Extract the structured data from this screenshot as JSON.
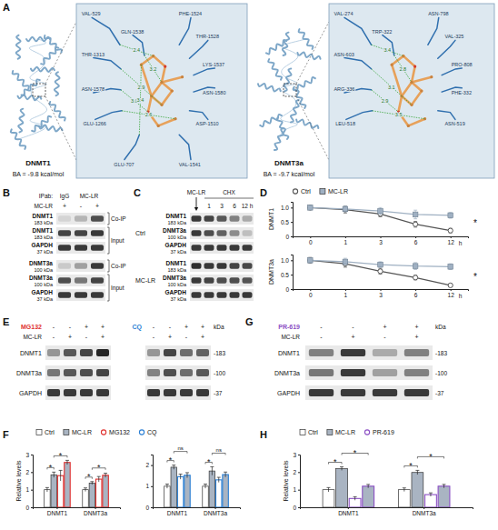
{
  "panel_labels": [
    "A",
    "B",
    "C",
    "D",
    "E",
    "F",
    "G",
    "H"
  ],
  "panels": {
    "A": {
      "structures": [
        {
          "name": "DNMT1",
          "affinity": "BA = -9.8 kcal/mol",
          "residues": [
            "VAL-529",
            "PHE-1524",
            "GLN-1538",
            "THR-1528",
            "THR-1313",
            "LYS-1537",
            "ASN-1578",
            "ASN-1580",
            "GLU-1266",
            "ASP-1510",
            "GLU-707",
            "VAL-1541"
          ],
          "distances": [
            "2.4",
            "3.2",
            "2.9",
            "3.0",
            "2.6",
            "3.4"
          ]
        },
        {
          "name": "DNMT3a",
          "affinity": "BA = -9.7 kcal/mol",
          "residues": [
            "VAL-274",
            "ASN-798",
            "TRP-322",
            "VAL-325",
            "ASN-603",
            "PRO-808",
            "ARG-336",
            "PHE-332",
            "LEU-518",
            "ASN-519"
          ],
          "distances": [
            "3.4",
            "2.8",
            "3.1",
            "2.9",
            "3.5"
          ]
        }
      ]
    },
    "B": {
      "ip_label": "IPab:",
      "ip": [
        {
          "text": "IgG",
          "span": 1
        },
        {
          "text": "MC-LR",
          "span": 2
        }
      ],
      "treatment_label": "MC-LR",
      "treatment": [
        "+",
        "-",
        "+"
      ],
      "sections": [
        {
          "label": "Co-IP",
          "rows": [
            {
              "name": "DNMT1",
              "size": "183 kDa",
              "bands": [
                0.1,
                0.25,
                0.75
              ]
            }
          ]
        },
        {
          "label": "Input",
          "rows": [
            {
              "name": "DNMT1",
              "size": "183 kDa",
              "bands": [
                0.8,
                0.8,
                0.85
              ]
            },
            {
              "name": "GAPDH",
              "size": "37 kDa",
              "bands": [
                0.85,
                0.85,
                0.85
              ]
            }
          ]
        },
        {
          "label": "Co-IP",
          "rows": [
            {
              "name": "DNMT3a",
              "size": "100 kDa",
              "bands": [
                0.15,
                0.35,
                0.85
              ]
            }
          ]
        },
        {
          "label": "Input",
          "rows": [
            {
              "name": "DNMT3a",
              "size": "100 kDa",
              "bands": [
                0.75,
                0.55,
                0.8
              ]
            },
            {
              "name": "GAPDH",
              "size": "37 kDa",
              "bands": [
                0.85,
                0.85,
                0.85
              ]
            }
          ]
        }
      ]
    },
    "C": {
      "treatment": "MC-LR",
      "chase": "CHX",
      "lanes": [
        null,
        "1",
        "3",
        "6",
        "12 h"
      ],
      "groups": [
        {
          "label": "Ctrl",
          "rows": [
            {
              "name": "DNMT1",
              "size": "183 kDa",
              "bands": [
                0.85,
                0.8,
                0.7,
                0.5,
                0.3
              ]
            },
            {
              "name": "DNMT3a",
              "size": "100 kDa",
              "bands": [
                0.85,
                0.75,
                0.65,
                0.45,
                0.2
              ]
            },
            {
              "name": "GAPDH",
              "size": "37 kDa",
              "bands": [
                0.85,
                0.85,
                0.85,
                0.85,
                0.85
              ]
            }
          ]
        },
        {
          "label": "MC-LR",
          "rows": [
            {
              "name": "DNMT1",
              "size": "183 kDa",
              "bands": [
                0.9,
                0.85,
                0.85,
                0.8,
                0.78
              ]
            },
            {
              "name": "DNMT3a",
              "size": "100 kDa",
              "bands": [
                0.85,
                0.8,
                0.75,
                0.75,
                0.72
              ]
            },
            {
              "name": "GAPDH",
              "size": "37 kDa",
              "bands": [
                0.85,
                0.85,
                0.85,
                0.85,
                0.85
              ]
            }
          ]
        }
      ]
    },
    "E": {
      "blots": [
        {
          "treatment": {
            "label": "MG132",
            "color": "#e0312f",
            "signs": [
              "-",
              "-",
              "+",
              "+"
            ]
          },
          "mclr": {
            "label": "MC-LR",
            "signs": [
              "-",
              "+",
              "-",
              "+"
            ]
          },
          "rows": [
            {
              "name": "DNMT1",
              "bands": [
                0.4,
                0.7,
                0.8,
                0.95
              ]
            },
            {
              "name": "DNMT3a",
              "bands": [
                0.55,
                0.7,
                0.75,
                0.8
              ]
            },
            {
              "name": "GAPDH",
              "bands": [
                0.85,
                0.85,
                0.85,
                0.85
              ]
            }
          ]
        },
        {
          "treatment": {
            "label": "CQ",
            "color": "#2a7fd4",
            "signs": [
              "-",
              "-",
              "+",
              "+"
            ]
          },
          "mclr": {
            "signs": [
              "-",
              "+",
              "-",
              "+"
            ]
          },
          "rows": [
            {
              "bands": [
                0.4,
                0.8,
                0.6,
                0.65
              ]
            },
            {
              "bands": [
                0.5,
                0.75,
                0.6,
                0.7
              ]
            },
            {
              "bands": [
                0.85,
                0.85,
                0.85,
                0.85
              ]
            }
          ],
          "size_header": "kDa",
          "sizes": [
            "-183",
            "-100",
            "-37"
          ]
        }
      ]
    },
    "G": {
      "blots": [
        {
          "treatment": {
            "label": "PR-619",
            "color": "#8b4fc4",
            "signs": [
              "-",
              "-",
              "+",
              "+"
            ]
          },
          "mclr": {
            "label": "MC-LR",
            "signs": [
              "-",
              "+",
              "-",
              "+"
            ]
          },
          "rows": [
            {
              "name": "DNMT1",
              "bands": [
                0.5,
                0.85,
                0.3,
                0.5
              ]
            },
            {
              "name": "DNMT3a",
              "bands": [
                0.55,
                0.85,
                0.35,
                0.5
              ]
            },
            {
              "name": "GAPDH",
              "bands": [
                0.85,
                0.85,
                0.85,
                0.85
              ]
            }
          ],
          "size_header": "kDa",
          "sizes": [
            "-183",
            "-100",
            "-37"
          ]
        }
      ]
    }
  },
  "chart_data": [
    {
      "type": "line",
      "y_label": "DNMT1",
      "categories": [
        "0",
        "1",
        "3",
        "6",
        "12"
      ],
      "x_label": "h",
      "ylim": [
        0,
        1.2
      ],
      "yticks": [
        0,
        0.5,
        {
          "value": 1,
          "label": "1.0"
        }
      ],
      "legend": "top",
      "series": [
        {
          "name": "Ctrl",
          "color": "#555555",
          "marker": "circle",
          "values": [
            1.0,
            0.93,
            0.78,
            0.42,
            0.2
          ],
          "errors": [
            0.08,
            0.12,
            0.1,
            0.1,
            0.08
          ]
        },
        {
          "name": "MC-LR",
          "color": "#9fb0c2",
          "marker": "square",
          "values": [
            1.0,
            0.95,
            0.88,
            0.76,
            0.73
          ],
          "errors": [
            0.06,
            0.1,
            0.12,
            0.15,
            0.1
          ]
        }
      ],
      "annotations": [
        "*"
      ]
    },
    {
      "type": "line",
      "y_label": "DNMT3a",
      "categories": [
        "0",
        "1",
        "3",
        "6",
        "12"
      ],
      "x_label": "h",
      "ylim": [
        0,
        1.2
      ],
      "yticks": [
        0,
        0.5,
        {
          "value": 1,
          "label": "1.0"
        }
      ],
      "series": [
        {
          "color": "#555555",
          "marker": "circle",
          "values": [
            1.0,
            0.88,
            0.62,
            0.4,
            0.13
          ],
          "errors": [
            0.1,
            0.12,
            0.1,
            0.08,
            0.05
          ]
        },
        {
          "color": "#9fb0c2",
          "marker": "square",
          "values": [
            1.0,
            0.95,
            0.85,
            0.8,
            0.78
          ],
          "errors": [
            0.08,
            0.12,
            0.1,
            0.12,
            0.1
          ]
        }
      ],
      "annotations": [
        "*"
      ]
    },
    {
      "type": "bar",
      "y_label": "Relative levels",
      "categories": [
        "DNMT1",
        "DNMT3a"
      ],
      "ylim": [
        0,
        3
      ],
      "yticks": [
        0,
        1,
        2,
        3
      ],
      "legend": "top",
      "series": [
        {
          "name": "Ctrl",
          "color": "#ffffff",
          "values": [
            1.0,
            1.0
          ],
          "errors": [
            0.12,
            0.1
          ]
        },
        {
          "name": "MC-LR",
          "color": "#a9b4c2",
          "values": [
            1.85,
            1.38
          ],
          "errors": [
            0.15,
            0.08
          ]
        },
        {
          "name": "MG132",
          "color": "#e0312f",
          "marker": "circle",
          "values": [
            1.8,
            1.6
          ],
          "errors": [
            0.3,
            0.15
          ]
        },
        {
          "color": "#a9b4c2",
          "marker": "circle",
          "values": [
            2.55,
            1.82
          ],
          "errors": [
            0.12,
            0.12
          ]
        }
      ],
      "annotations": [
        "*",
        "*",
        "*",
        "*"
      ]
    },
    {
      "type": "bar",
      "categories": [
        "DNMT1",
        "DNMT3a"
      ],
      "ylim": [
        0,
        2.5
      ],
      "yticks": [
        0,
        1,
        2
      ],
      "legend": "top",
      "series": [
        {
          "color": "#ffffff",
          "values": [
            1.0,
            1.0
          ],
          "errors": [
            0.1,
            0.1
          ]
        },
        {
          "color": "#a9b4c2",
          "values": [
            1.9,
            1.72
          ],
          "errors": [
            0.1,
            0.2
          ]
        },
        {
          "name": "CQ",
          "color": "#2a7fd4",
          "marker": "circle",
          "values": [
            1.45,
            1.3
          ],
          "errors": [
            0.12,
            0.12
          ]
        },
        {
          "color": "#a9b4c2",
          "marker": "circle",
          "values": [
            1.52,
            1.55
          ],
          "errors": [
            0.12,
            0.12
          ]
        }
      ],
      "annotations": [
        "*",
        "ns",
        "*",
        "ns"
      ]
    },
    {
      "type": "bar",
      "y_label": "Relative levels",
      "categories": [
        "DNMT1",
        "DNMT3a"
      ],
      "ylim": [
        0,
        3
      ],
      "yticks": [
        0,
        1,
        2,
        3
      ],
      "legend": "top",
      "series": [
        {
          "name": "Ctrl",
          "color": "#ffffff",
          "values": [
            1.0,
            1.0
          ],
          "errors": [
            0.12,
            0.1
          ]
        },
        {
          "name": "MC-LR",
          "color": "#a9b4c2",
          "values": [
            2.2,
            1.98
          ],
          "errors": [
            0.1,
            0.12
          ]
        },
        {
          "name": "PR-619",
          "color": "#8b4fc4",
          "marker": "circle",
          "values": [
            0.5,
            0.72
          ],
          "errors": [
            0.1,
            0.1
          ]
        },
        {
          "color": "#a9b4c2",
          "marker": "circle",
          "values": [
            1.2,
            1.2
          ],
          "errors": [
            0.1,
            0.1
          ]
        }
      ],
      "annotations": [
        "*",
        "*",
        "*",
        "*"
      ]
    }
  ]
}
